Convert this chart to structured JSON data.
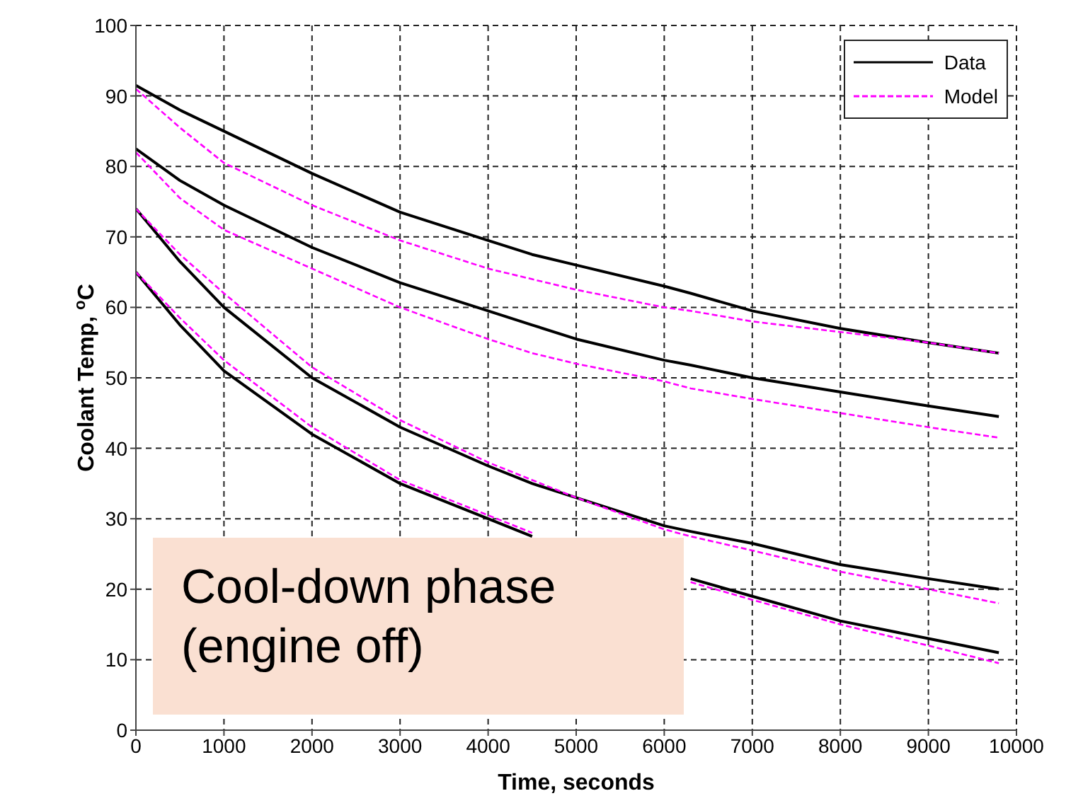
{
  "chart_data": {
    "type": "line",
    "xlabel": "Time, seconds",
    "ylabel": "Coolant Temp, $^{o}$C",
    "x": [
      0,
      500,
      1000,
      2000,
      3000,
      4000,
      4500,
      5000,
      6000,
      6300,
      7000,
      8000,
      9000,
      9800
    ],
    "xlim": [
      0,
      10000
    ],
    "xticks": [
      0,
      1000,
      2000,
      3000,
      4000,
      5000,
      6000,
      7000,
      8000,
      9000,
      10000
    ],
    "ylim": [
      0,
      100
    ],
    "yticks": [
      0,
      10,
      20,
      30,
      40,
      50,
      60,
      70,
      80,
      90,
      100
    ],
    "grid": true,
    "legend": "top right",
    "marker": "none",
    "annotations": [
      "Cool-down phase\n(engine off)"
    ],
    "series": [
      {
        "name": "Data",
        "color": "#000000",
        "line_style": "solid",
        "values": [
          91.5,
          88,
          85,
          79,
          73.5,
          69.5,
          67.5,
          66,
          63,
          62,
          59.5,
          57,
          55,
          53.5
        ]
      },
      {
        "name": "Model",
        "color": "#ff00ff",
        "line_style": "dashed",
        "values": [
          91,
          85.5,
          80.5,
          74.5,
          69.5,
          65.5,
          64,
          62.5,
          60,
          59.5,
          58,
          56.5,
          55,
          53.5
        ]
      },
      {
        "color": "#000000",
        "line_style": "solid",
        "values": [
          82.5,
          78,
          74.5,
          68.5,
          63.5,
          59.5,
          57.5,
          55.5,
          52.5,
          51.8,
          50,
          48,
          46,
          44.5
        ]
      },
      {
        "color": "#ff00ff",
        "line_style": "dashed",
        "values": [
          82,
          75.5,
          71,
          65.5,
          60,
          55.5,
          53.5,
          52,
          49.5,
          48.5,
          47,
          45,
          43,
          41.5
        ]
      },
      {
        "color": "#000000",
        "line_style": "solid",
        "values": [
          74,
          66.5,
          60,
          50,
          43,
          37.5,
          35,
          33,
          29,
          28.2,
          26.5,
          23.5,
          21.5,
          20
        ]
      },
      {
        "color": "#ff00ff",
        "line_style": "dashed",
        "values": [
          74,
          67.5,
          62,
          51.5,
          44,
          38,
          35.5,
          33,
          28.5,
          27.5,
          25.5,
          22.5,
          20,
          18
        ]
      },
      {
        "color": "#000000",
        "line_style": "solid",
        "values": [
          65,
          57.5,
          51,
          42,
          35,
          30,
          27.5,
          null,
          null,
          21.5,
          19,
          15.5,
          13,
          11
        ]
      },
      {
        "color": "#ff00ff",
        "line_style": "dashed",
        "values": [
          65,
          58.5,
          52.5,
          43,
          35.5,
          30.5,
          28,
          null,
          null,
          21,
          18.5,
          15,
          12,
          9.5
        ]
      }
    ]
  }
}
